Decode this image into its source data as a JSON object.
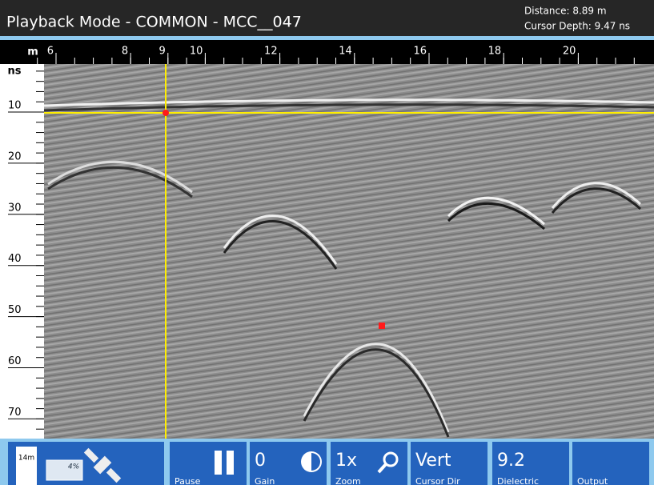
{
  "header": {
    "title": "Playback Mode - COMMON - MCC__047",
    "distance": "Distance: 8.89 m",
    "cursor_depth": "Cursor Depth: 9.47 ns"
  },
  "top_ruler": {
    "unit": "m",
    "ticks": [
      6,
      8,
      9,
      10,
      12,
      14,
      16,
      18,
      20
    ]
  },
  "left_ruler": {
    "unit": "ns",
    "ticks": [
      10,
      20,
      30,
      40,
      50,
      60,
      70
    ]
  },
  "status": {
    "range": "14m",
    "battery": "4%"
  },
  "toolbar": [
    {
      "value": "",
      "label": "Pause"
    },
    {
      "value": "0",
      "label": "Gain"
    },
    {
      "value": "1x",
      "label": "Zoom"
    },
    {
      "value": "Vert",
      "label": "Cursor Dir"
    },
    {
      "value": "9.2",
      "label": "Dielectric"
    },
    {
      "value": "",
      "label": "Output"
    }
  ]
}
